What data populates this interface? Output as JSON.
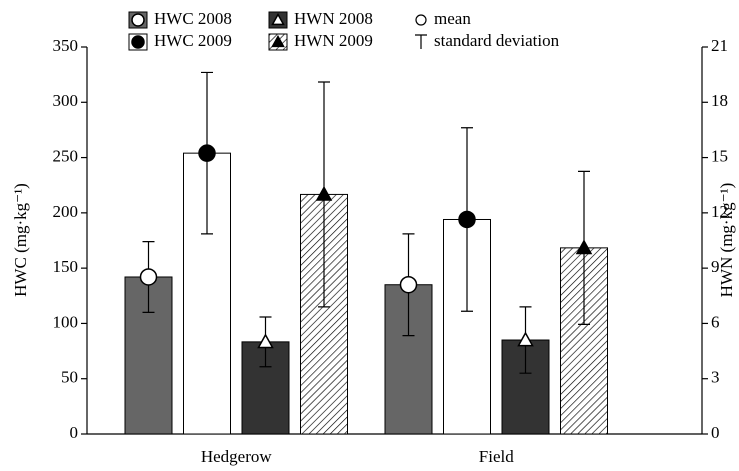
{
  "chart_data": {
    "type": "bar",
    "categories": [
      "Hedgerow",
      "Field"
    ],
    "y_label": "HWC (mg·kg⁻¹)",
    "y2_label": "HWN (mg·kg⁻¹)",
    "ylim": [
      0,
      350
    ],
    "yticks": [
      0,
      50,
      100,
      150,
      200,
      250,
      300,
      350
    ],
    "y2lim": [
      0,
      21
    ],
    "y2ticks": [
      0,
      3,
      6,
      9,
      12,
      15,
      18,
      21
    ],
    "series": [
      {
        "name": "HWC 2008",
        "color": "#666666",
        "pattern": "solid",
        "marker": "circle",
        "marker_fill": "#ffffff",
        "axis": "y",
        "values": [
          142,
          135
        ],
        "sd": [
          32,
          46
        ]
      },
      {
        "name": "HWC 2009",
        "color": "#ffffff",
        "pattern": "solid",
        "marker": "circle",
        "marker_fill": "#000000",
        "axis": "y",
        "values": [
          254,
          194
        ],
        "sd": [
          73,
          83
        ]
      },
      {
        "name": "HWN 2008",
        "color": "#333333",
        "pattern": "solid",
        "marker": "triangle",
        "marker_fill": "#ffffff",
        "axis": "y2",
        "values": [
          5.0,
          5.1
        ],
        "sd": [
          1.35,
          1.8
        ]
      },
      {
        "name": "HWN 2009",
        "color": "#ffffff",
        "pattern": "hatch",
        "marker": "triangle",
        "marker_fill": "#000000",
        "axis": "y2",
        "values": [
          13.0,
          10.1
        ],
        "sd": [
          6.1,
          4.15
        ]
      }
    ],
    "legend_extra": [
      "mean",
      "standard deviation"
    ]
  }
}
